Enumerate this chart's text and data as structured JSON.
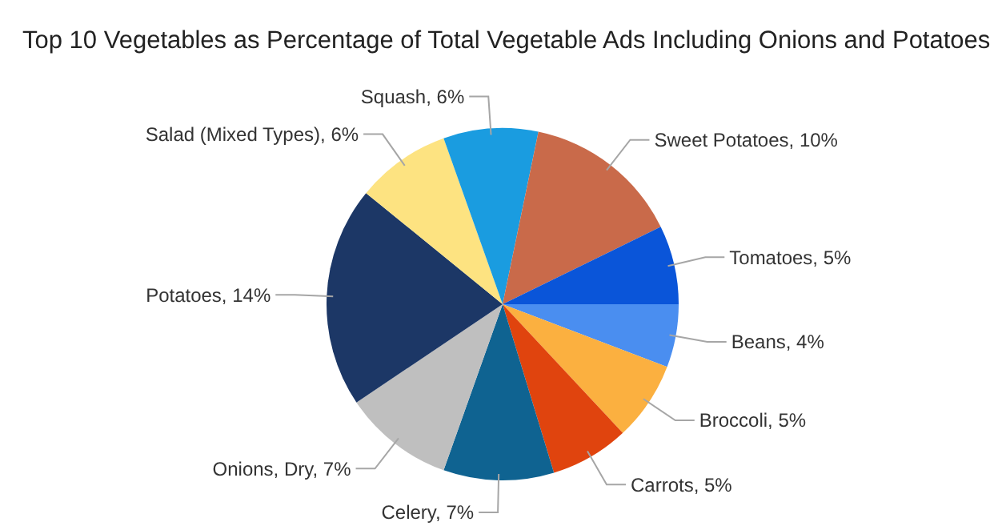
{
  "chart_data": {
    "type": "pie",
    "title": "Top 10 Vegetables as Percentage of Total Vegetable Ads Including Onions and Potatoes",
    "categories": [
      "Beans",
      "Broccoli",
      "Carrots",
      "Celery",
      "Onions, Dry",
      "Potatoes",
      "Salad (Mixed Types)",
      "Squash",
      "Sweet Potatoes",
      "Tomatoes"
    ],
    "values": [
      4,
      5,
      5,
      7,
      7,
      14,
      6,
      6,
      10,
      5
    ],
    "value_labels": [
      "4%",
      "5%",
      "5%",
      "7%",
      "7%",
      "14%",
      "6%",
      "6%",
      "10%",
      "5%"
    ],
    "colors": [
      "#4a8ef0",
      "#fbb040",
      "#e0440e",
      "#0f6391",
      "#bfbfbf",
      "#1c3766",
      "#fde381",
      "#1a9ce0",
      "#c96a4a",
      "#0a55d9"
    ]
  }
}
